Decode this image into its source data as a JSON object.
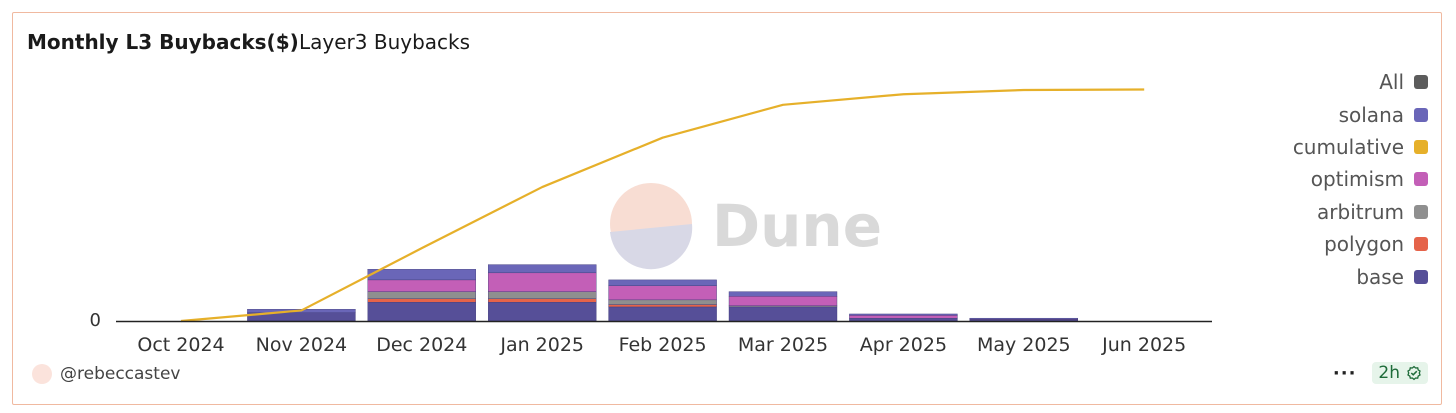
{
  "header": {
    "title": "Monthly L3 Buybacks($)",
    "subtitle": "Layer3 Buybacks"
  },
  "watermark": {
    "text": "Dune"
  },
  "footer": {
    "user": "@rebeccastev",
    "refresh_age": "2h"
  },
  "colors": {
    "base": "#564f98",
    "polygon": "#e5634a",
    "arbitrum": "#8f8f8f",
    "optimism": "#c35fb7",
    "cumulative": "#e6b02a",
    "solana": "#6a66b8",
    "all": "#5c5c5c"
  },
  "legend": [
    {
      "label": "All",
      "color": "#5c5c5c"
    },
    {
      "label": "solana",
      "color": "#6a66b8"
    },
    {
      "label": "cumulative",
      "color": "#e6b02a"
    },
    {
      "label": "optimism",
      "color": "#c35fb7"
    },
    {
      "label": "arbitrum",
      "color": "#8f8f8f"
    },
    {
      "label": "polygon",
      "color": "#e5634a"
    },
    {
      "label": "base",
      "color": "#564f98"
    }
  ],
  "chart_data": {
    "type": "bar",
    "stacked": true,
    "title": "Monthly L3 Buybacks($)",
    "subtitle": "Layer3 Buybacks",
    "categories": [
      "Oct 2024",
      "Nov 2024",
      "Dec 2024",
      "Jan 2025",
      "Feb 2025",
      "Mar 2025",
      "Apr 2025",
      "May 2025",
      "Jun 2025"
    ],
    "y_ticks": [
      "0"
    ],
    "ylim": [
      0,
      100
    ],
    "grid": false,
    "legend_position": "right",
    "series": [
      {
        "name": "base",
        "type": "bar",
        "values": [
          0,
          3.5,
          8,
          8,
          6,
          6,
          1.2,
          0.5,
          0
        ]
      },
      {
        "name": "polygon",
        "type": "bar",
        "values": [
          0,
          0,
          1.5,
          1.5,
          1,
          0,
          0,
          0,
          0
        ]
      },
      {
        "name": "arbitrum",
        "type": "bar",
        "values": [
          0,
          0,
          3,
          3,
          2,
          0.5,
          0,
          0,
          0
        ]
      },
      {
        "name": "optimism",
        "type": "bar",
        "values": [
          0,
          0,
          5,
          8,
          6,
          4,
          1.2,
          0.3,
          0
        ]
      },
      {
        "name": "solana",
        "type": "bar",
        "values": [
          0,
          1.5,
          4.5,
          3.5,
          2.5,
          2,
          0.6,
          0.4,
          0
        ]
      },
      {
        "name": "cumulative",
        "type": "line",
        "values": [
          0,
          4.5,
          31,
          57,
          78,
          92,
          96.5,
          98.3,
          98.5
        ]
      }
    ]
  }
}
